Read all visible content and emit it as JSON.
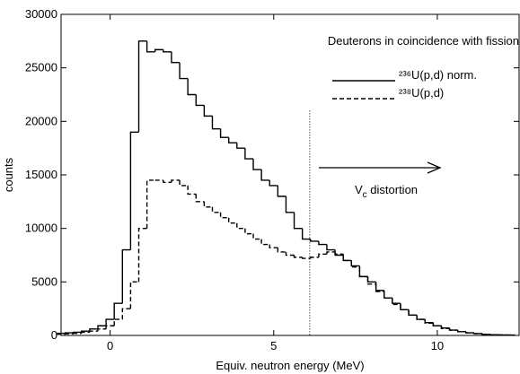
{
  "chart_data": {
    "type": "step",
    "title": "Deuterons in coincidence with fission",
    "x_label": "Equiv. neutron energy (MeV)",
    "y_label": "counts",
    "x": [
      -1.5,
      -1.25,
      -1,
      -0.75,
      -0.5,
      -0.25,
      0,
      0.25,
      0.5,
      0.75,
      1,
      1.25,
      1.5,
      1.75,
      2,
      2.25,
      2.5,
      2.75,
      3,
      3.25,
      3.5,
      3.75,
      4,
      4.25,
      4.5,
      4.75,
      5,
      5.25,
      5.5,
      5.75,
      6,
      6.25,
      6.5,
      6.75,
      7,
      7.25,
      7.5,
      7.75,
      8,
      8.25,
      8.5,
      8.75,
      9,
      9.25,
      9.5,
      9.75,
      10,
      10.25,
      10.5,
      10.75,
      11,
      11.25,
      11.5,
      11.75,
      12,
      12.25
    ],
    "series": [
      {
        "name": "²³⁶U(p,d) norm.",
        "color": "#000000",
        "dash": "solid",
        "values": [
          200,
          250,
          300,
          400,
          600,
          900,
          1500,
          3000,
          8000,
          19000,
          27500,
          26500,
          26700,
          26500,
          25500,
          24000,
          22500,
          21500,
          20500,
          19300,
          18500,
          18000,
          17500,
          16500,
          15500,
          14500,
          14000,
          13000,
          11500,
          10000,
          9000,
          8800,
          8500,
          8000,
          7500,
          7000,
          6500,
          5500,
          5000,
          4200,
          3500,
          3000,
          2400,
          1900,
          1500,
          1200,
          900,
          700,
          500,
          350,
          250,
          170,
          100,
          70,
          50,
          40
        ]
      },
      {
        "name": "²³⁸U(p,d)",
        "color": "#000000",
        "dash": "dashed",
        "values": [
          100,
          150,
          200,
          300,
          400,
          600,
          900,
          1500,
          2500,
          5000,
          10000,
          14500,
          14500,
          14300,
          14500,
          14000,
          13200,
          12500,
          12000,
          11500,
          11000,
          10500,
          10000,
          9500,
          9000,
          8500,
          8200,
          7800,
          7500,
          7300,
          7200,
          7300,
          7600,
          7800,
          7600,
          7000,
          6400,
          5500,
          4800,
          4100,
          3500,
          2900,
          2400,
          1900,
          1500,
          1150,
          900,
          650,
          500,
          350,
          250,
          170,
          100,
          70,
          50,
          40
        ]
      }
    ],
    "cutoff": {
      "x": 6.1,
      "y": 21000
    },
    "annotation": {
      "base": "V",
      "sub": "c",
      "rest": " distortion"
    },
    "xlim": [
      -1.5,
      12.5
    ],
    "xticks": [
      0,
      5,
      10
    ],
    "ylim": [
      0,
      30000
    ],
    "yticks": [
      0,
      5000,
      10000,
      15000,
      20000,
      25000,
      30000
    ]
  }
}
